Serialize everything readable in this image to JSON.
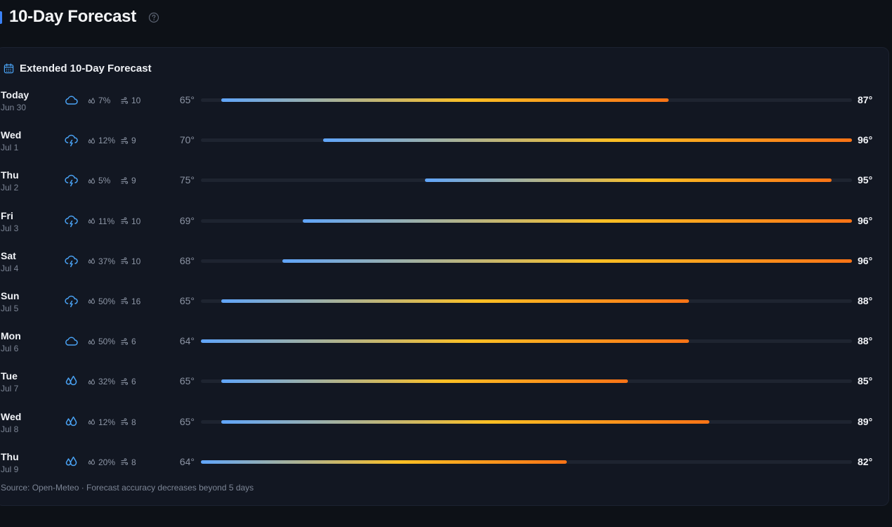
{
  "page": {
    "title": "10-Day Forecast",
    "help_icon": "question-circle-icon",
    "accent_color": "#3b82f6"
  },
  "card": {
    "icon": "calendar-icon",
    "title": "Extended 10-Day Forecast",
    "footer": "Source: Open-Meteo · Forecast accuracy decreases beyond 5 days"
  },
  "scale": {
    "min": 64,
    "max": 96
  },
  "colors": {
    "cold": "#60a5fa",
    "mid": "#fbbf24",
    "hot": "#f97316",
    "track": "#1e2430",
    "icon": "#4aa3f5"
  },
  "days": [
    {
      "name": "Today",
      "date": "Jun 30",
      "icon": "cloud-icon",
      "precip": "7%",
      "wind": "10",
      "low": 65,
      "high": 87,
      "low_label": "65°",
      "high_label": "87°"
    },
    {
      "name": "Wed",
      "date": "Jul 1",
      "icon": "cloud-lightning-icon",
      "precip": "12%",
      "wind": "9",
      "low": 70,
      "high": 96,
      "low_label": "70°",
      "high_label": "96°"
    },
    {
      "name": "Thu",
      "date": "Jul 2",
      "icon": "cloud-lightning-icon",
      "precip": "5%",
      "wind": "9",
      "low": 75,
      "high": 95,
      "low_label": "75°",
      "high_label": "95°"
    },
    {
      "name": "Fri",
      "date": "Jul 3",
      "icon": "cloud-lightning-icon",
      "precip": "11%",
      "wind": "10",
      "low": 69,
      "high": 96,
      "low_label": "69°",
      "high_label": "96°"
    },
    {
      "name": "Sat",
      "date": "Jul 4",
      "icon": "cloud-lightning-icon",
      "precip": "37%",
      "wind": "10",
      "low": 68,
      "high": 96,
      "low_label": "68°",
      "high_label": "96°"
    },
    {
      "name": "Sun",
      "date": "Jul 5",
      "icon": "cloud-lightning-icon",
      "precip": "50%",
      "wind": "16",
      "low": 65,
      "high": 88,
      "low_label": "65°",
      "high_label": "88°"
    },
    {
      "name": "Mon",
      "date": "Jul 6",
      "icon": "cloud-icon",
      "precip": "50%",
      "wind": "6",
      "low": 64,
      "high": 88,
      "low_label": "64°",
      "high_label": "88°"
    },
    {
      "name": "Tue",
      "date": "Jul 7",
      "icon": "droplets-icon",
      "precip": "32%",
      "wind": "6",
      "low": 65,
      "high": 85,
      "low_label": "65°",
      "high_label": "85°"
    },
    {
      "name": "Wed",
      "date": "Jul 8",
      "icon": "droplets-icon",
      "precip": "12%",
      "wind": "8",
      "low": 65,
      "high": 89,
      "low_label": "65°",
      "high_label": "89°"
    },
    {
      "name": "Thu",
      "date": "Jul 9",
      "icon": "droplets-icon",
      "precip": "20%",
      "wind": "8",
      "low": 64,
      "high": 82,
      "low_label": "64°",
      "high_label": "82°"
    }
  ]
}
